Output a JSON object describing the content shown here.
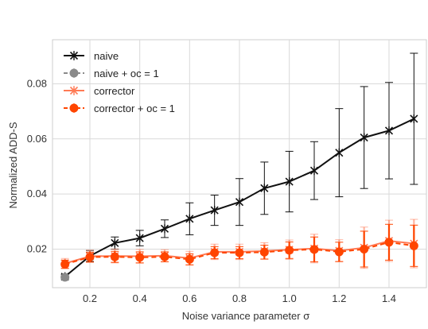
{
  "chart_data": {
    "type": "line",
    "title": "",
    "xlabel": "Noise variance parameter σ",
    "ylabel": "Normalized ADD-S",
    "xlim": [
      0.05,
      1.55
    ],
    "ylim": [
      0.006,
      0.096
    ],
    "xticks": [
      0.2,
      0.4,
      0.6,
      0.8,
      1.0,
      1.2,
      1.4
    ],
    "xtick_labels": [
      "0.2",
      "0.4",
      "0.6",
      "0.8",
      "1.0",
      "1.2",
      "1.4"
    ],
    "yticks": [
      0.02,
      0.04,
      0.06,
      0.08
    ],
    "ytick_labels": [
      "0.02",
      "0.04",
      "0.06",
      "0.08"
    ],
    "grid": true,
    "legend_position": "top-left",
    "series": [
      {
        "name": "naive",
        "color": "#111111",
        "marker": "x",
        "linestyle": "solid",
        "x": [
          0.1,
          0.2,
          0.3,
          0.4,
          0.5,
          0.6,
          0.7,
          0.8,
          0.9,
          1.0,
          1.1,
          1.2,
          1.3,
          1.4,
          1.5
        ],
        "y": [
          0.01,
          0.0175,
          0.0222,
          0.024,
          0.0274,
          0.031,
          0.0341,
          0.0371,
          0.0421,
          0.0445,
          0.0485,
          0.055,
          0.0605,
          0.063,
          0.0673
        ],
        "err": [
          0.0008,
          0.002,
          0.0022,
          0.0028,
          0.0032,
          0.0058,
          0.0055,
          0.0085,
          0.0095,
          0.011,
          0.0105,
          0.016,
          0.0185,
          0.0175,
          0.0238
        ]
      },
      {
        "name": "naive + oc = 1",
        "color": "#8a8a8a",
        "marker": "o",
        "linestyle": "dashed",
        "x": [
          0.1
        ],
        "y": [
          0.0098
        ],
        "err": [
          0.0008
        ]
      },
      {
        "name": "corrector",
        "color": "#ff7a55",
        "marker": "x",
        "linestyle": "solid",
        "x": [
          0.1,
          0.2,
          0.3,
          0.4,
          0.5,
          0.6,
          0.7,
          0.8,
          0.9,
          1.0,
          1.1,
          1.2,
          1.3,
          1.4,
          1.5
        ],
        "y": [
          0.0148,
          0.0174,
          0.0175,
          0.0174,
          0.0176,
          0.0167,
          0.019,
          0.019,
          0.0193,
          0.0198,
          0.0202,
          0.0194,
          0.0205,
          0.023,
          0.022
        ],
        "err": [
          0.0018,
          0.0022,
          0.0025,
          0.0025,
          0.0022,
          0.0025,
          0.0028,
          0.0028,
          0.003,
          0.0035,
          0.0052,
          0.004,
          0.0075,
          0.0075,
          0.0088
        ]
      },
      {
        "name": "corrector + oc = 1",
        "color": "#ff4500",
        "marker": "o",
        "linestyle": "dashed",
        "x": [
          0.1,
          0.2,
          0.3,
          0.4,
          0.5,
          0.6,
          0.7,
          0.8,
          0.9,
          1.0,
          1.1,
          1.2,
          1.3,
          1.4,
          1.5
        ],
        "y": [
          0.0145,
          0.0171,
          0.0172,
          0.017,
          0.0172,
          0.0163,
          0.0187,
          0.0187,
          0.0189,
          0.0196,
          0.0199,
          0.019,
          0.02,
          0.0225,
          0.0212
        ],
        "err": [
          0.0015,
          0.0018,
          0.002,
          0.002,
          0.0018,
          0.002,
          0.0022,
          0.0022,
          0.0025,
          0.003,
          0.0045,
          0.0035,
          0.0065,
          0.0065,
          0.0075
        ]
      }
    ]
  }
}
